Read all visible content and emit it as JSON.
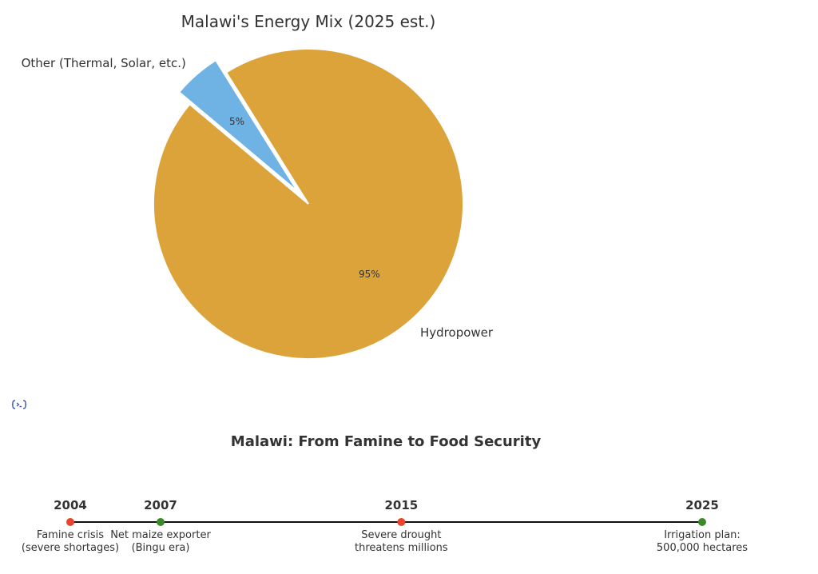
{
  "chart_data": [
    {
      "type": "pie",
      "title": "Malawi's Energy Mix (2025 est.)",
      "slices": [
        {
          "label": "Hydropower",
          "value": 95,
          "display": "95%",
          "color": "#dba339",
          "exploded": false
        },
        {
          "label": "Other (Thermal, Solar, etc.)",
          "value": 5,
          "display": "5%",
          "color": "#6fb2e4",
          "exploded": true
        }
      ]
    },
    {
      "type": "timeline",
      "title": "Malawi: From Famine to Food Security",
      "events": [
        {
          "year": "2004",
          "line1": "Famine crisis",
          "line2": "(severe shortages)",
          "color": "#e8452c"
        },
        {
          "year": "2007",
          "line1": "Net maize exporter",
          "line2": "(Bingu era)",
          "color": "#3b8a2a"
        },
        {
          "year": "2015",
          "line1": "Severe drought",
          "line2": "threatens millions",
          "color": "#e8452c"
        },
        {
          "year": "2025",
          "line1": "Irrigation plan:",
          "line2": "500,000 hectares",
          "color": "#3b8a2a"
        }
      ]
    }
  ],
  "icons": {
    "code": "code-icon",
    "code_color": "#3b5bb5"
  }
}
